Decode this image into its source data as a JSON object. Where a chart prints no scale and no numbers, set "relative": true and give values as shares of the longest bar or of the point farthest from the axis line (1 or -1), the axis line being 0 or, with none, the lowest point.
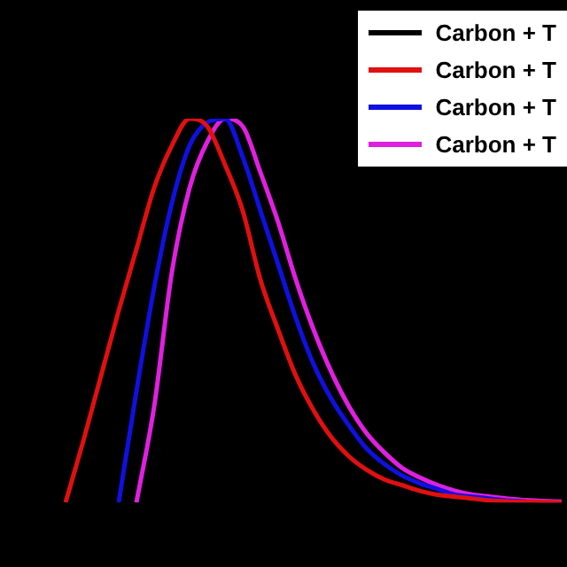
{
  "chart_data": {
    "type": "line",
    "relative": true,
    "legend": "top right",
    "marker": "none",
    "line_style": "solid",
    "categories": [
      null,
      null,
      null,
      null,
      null,
      null,
      null,
      null,
      null,
      null,
      null,
      null,
      null,
      null,
      null,
      null,
      null,
      null,
      null,
      null,
      null,
      null,
      null,
      null,
      null,
      null,
      null,
      null,
      null
    ],
    "series": [
      {
        "name": "Carbon + T",
        "color": "#000000",
        "values": [
          null,
          null,
          null,
          null,
          null,
          null,
          null,
          null,
          null,
          null,
          null,
          null,
          null,
          null,
          null,
          null,
          null,
          null,
          null,
          null,
          null,
          null,
          null,
          null,
          null,
          null,
          null,
          null,
          null
        ]
      },
      {
        "name": "Carbon + T",
        "color": "#e01010",
        "values": [
          0,
          0.16,
          0.33,
          0.5,
          0.66,
          0.82,
          0.93,
          1,
          0.98,
          0.88,
          0.76,
          0.58,
          0.45,
          0.33,
          0.24,
          0.17,
          0.12,
          0.085,
          0.06,
          0.045,
          0.03,
          0.02,
          0.015,
          0.01,
          0.005,
          0.003,
          0.002,
          0.001,
          0
        ]
      },
      {
        "name": "Carbon + T",
        "color": "#1010e0",
        "values": [
          null,
          null,
          null,
          0,
          0.29,
          0.56,
          0.78,
          0.93,
          0.99,
          1,
          0.9,
          0.76,
          0.62,
          0.48,
          0.36,
          0.27,
          0.2,
          0.14,
          0.1,
          0.07,
          0.05,
          0.035,
          0.02,
          0.015,
          0.01,
          0.005,
          0.003,
          null,
          null
        ]
      },
      {
        "name": "Carbon + T",
        "color": "#e020e0",
        "values": [
          null,
          null,
          null,
          null,
          0,
          0.25,
          0.6,
          0.82,
          0.94,
          1,
          0.98,
          0.86,
          0.73,
          0.58,
          0.45,
          0.34,
          0.25,
          0.18,
          0.13,
          0.09,
          0.065,
          0.045,
          0.03,
          0.02,
          0.015,
          0.01,
          0.006,
          0.004,
          0.002
        ]
      }
    ]
  }
}
